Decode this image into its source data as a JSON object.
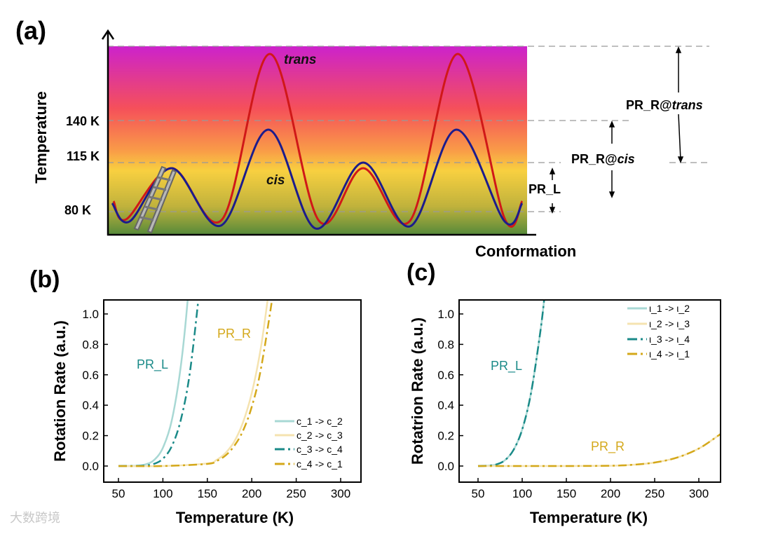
{
  "watermark": "大数跨境",
  "diagram": {
    "panel_label": "(a)",
    "y_axis_label": "Temperature",
    "x_axis_label": "Conformation",
    "temperature_levels": [
      "140 K",
      "115 K",
      "80 K"
    ],
    "curve_labels": {
      "trans": "trans",
      "cis": "cis"
    },
    "annotations": {
      "pr_l": "PR_L",
      "pr_r_cis_prefix": "PR_R@",
      "pr_r_cis_italic": "cis",
      "pr_r_trans_prefix": "PR_R@",
      "pr_r_trans_italic": "trans"
    },
    "colors": {
      "trans": "#d01818",
      "cis": "#1c1c8c",
      "gradient_top": "#cc22cc",
      "gradient_mid": "#f5505a",
      "gradient_yellow": "#f8d040",
      "gradient_bottom": "#558a3a"
    }
  },
  "chart_data": [
    {
      "panel_label": "(b)",
      "type": "line",
      "xlabel": "Temperature (K)",
      "ylabel": "Rotation Rate (a.u.)",
      "xlim": [
        33,
        323
      ],
      "ylim": [
        -0.1,
        1.1
      ],
      "xticks": [
        "50",
        "100",
        "150",
        "200",
        "250",
        "300"
      ],
      "yticks": [
        "0.0",
        "0.2",
        "0.4",
        "0.6",
        "0.8",
        "1.0"
      ],
      "legend_position": "bottom-right",
      "annotations": [
        {
          "text": "PR_L",
          "color": "#1a8a88"
        },
        {
          "text": "PR_R",
          "color": "#d4a81a"
        }
      ],
      "series": [
        {
          "name": "c_1 -> c_2",
          "color": "#a8d8d4",
          "dash": false,
          "x": [
            50,
            70,
            80,
            90,
            100,
            110,
            120,
            128,
            131
          ],
          "y": [
            0,
            0.002,
            0.01,
            0.039,
            0.12,
            0.3,
            0.65,
            1.1,
            1.4
          ]
        },
        {
          "name": "c_2 -> c_3",
          "color": "#f5e3b0",
          "dash": false,
          "x": [
            50,
            100,
            150,
            160,
            170,
            180,
            190,
            200,
            210,
            218,
            221
          ],
          "y": [
            0,
            0,
            0.017,
            0.039,
            0.083,
            0.158,
            0.285,
            0.48,
            0.77,
            1.1,
            1.25
          ]
        },
        {
          "name": "c_3 -> c_4",
          "color": "#1a8a88",
          "dash": true,
          "x": [
            50,
            70,
            80,
            90,
            100,
            110,
            120,
            130,
            140,
            143
          ],
          "y": [
            0,
            0.001,
            0.003,
            0.014,
            0.048,
            0.13,
            0.3,
            0.6,
            1.1,
            1.3
          ]
        },
        {
          "name": "c_4 -> c_1",
          "color": "#d4a81a",
          "dash": true,
          "x": [
            50,
            100,
            150,
            160,
            170,
            180,
            190,
            200,
            210,
            223,
            226
          ],
          "y": [
            0,
            0,
            0.014,
            0.032,
            0.067,
            0.13,
            0.23,
            0.39,
            0.63,
            1.1,
            1.25
          ]
        }
      ]
    },
    {
      "panel_label": "(c)",
      "type": "line",
      "xlabel": "Temperature (K)",
      "ylabel": "Rotatrion Rate (a.u.)",
      "xlim": [
        29,
        325
      ],
      "ylim": [
        -0.1,
        1.1
      ],
      "xticks": [
        "50",
        "100",
        "150",
        "200",
        "250",
        "300"
      ],
      "yticks": [
        "0.0",
        "0.2",
        "0.4",
        "0.6",
        "0.8",
        "1.0"
      ],
      "legend_position": "top-right",
      "annotations": [
        {
          "text": "PR_L",
          "color": "#1a8a88"
        },
        {
          "text": "PR_R",
          "color": "#d4a81a"
        }
      ],
      "series": [
        {
          "name": "ι_1 -> ι_2",
          "color": "#a8d8d4",
          "dash": false,
          "x": [
            50,
            60,
            70,
            80,
            90,
            100,
            110,
            120,
            125,
            128
          ],
          "y": [
            0,
            0.002,
            0.009,
            0.036,
            0.104,
            0.24,
            0.48,
            0.86,
            1.1,
            1.3
          ]
        },
        {
          "name": "ι_2 -> ι_3",
          "color": "#f5e3b0",
          "dash": false,
          "x": [
            50,
            100,
            150,
            200,
            225,
            250,
            275,
            300,
            322,
            325
          ],
          "y": [
            0,
            0,
            0,
            0.002,
            0.008,
            0.023,
            0.055,
            0.115,
            0.2,
            0.215
          ]
        },
        {
          "name": "ι_3 -> ι_4",
          "color": "#1a8a88",
          "dash": true,
          "x": [
            50,
            60,
            70,
            80,
            90,
            100,
            110,
            120,
            125,
            128
          ],
          "y": [
            0,
            0.002,
            0.009,
            0.036,
            0.104,
            0.24,
            0.48,
            0.86,
            1.1,
            1.3
          ]
        },
        {
          "name": "ι_4 -> ι_1",
          "color": "#d4a81a",
          "dash": true,
          "x": [
            50,
            100,
            150,
            200,
            225,
            250,
            275,
            300,
            322,
            325
          ],
          "y": [
            0,
            0,
            0,
            0.002,
            0.008,
            0.023,
            0.055,
            0.115,
            0.2,
            0.215
          ]
        }
      ]
    }
  ]
}
